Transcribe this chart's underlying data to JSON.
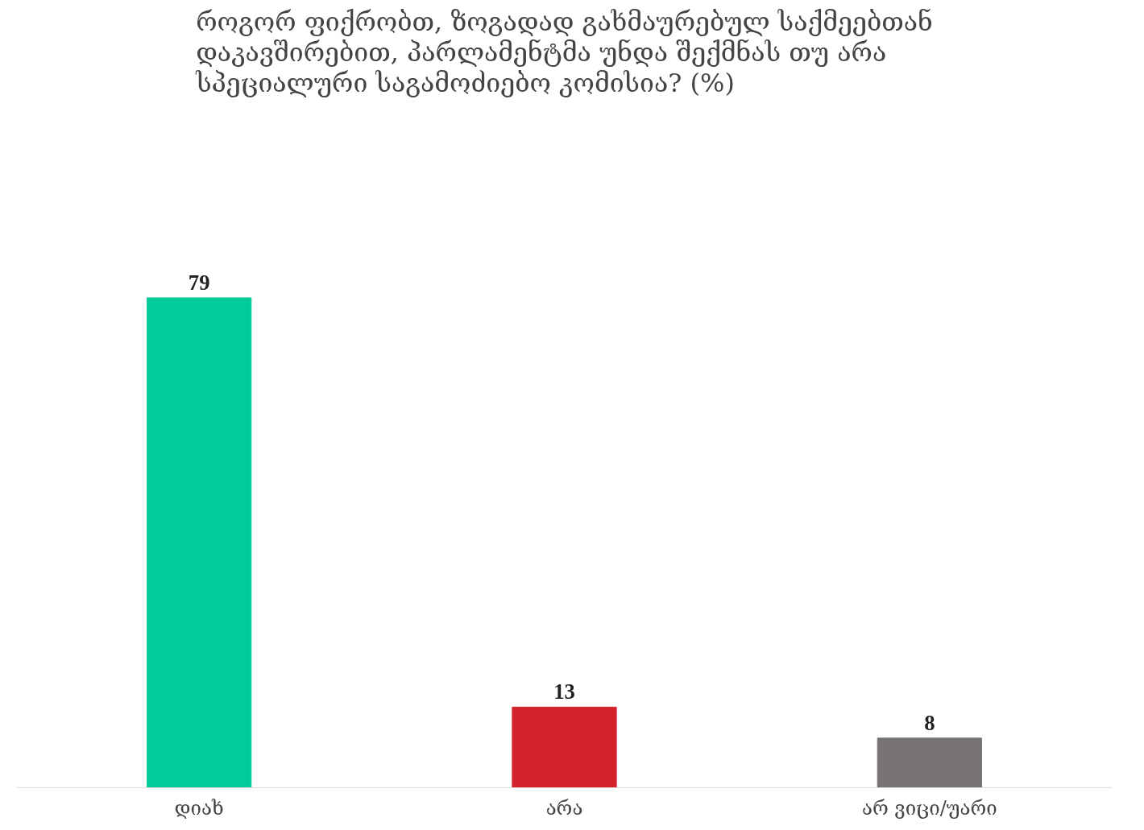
{
  "chart_data": {
    "type": "bar",
    "title": "როგორ ფიქრობთ, ზოგადად გახმაურებულ საქმეებთან დაკავშირებით, პარლამენტმა უნდა შექმნას თუ არა სპეციალური საგამოძიებო კომისია? (%)",
    "categories": [
      "დიახ",
      "არა",
      "არ ვიცი/უარი"
    ],
    "values": [
      79,
      13,
      8
    ],
    "colors": [
      "#00cc99",
      "#d3232a",
      "#777372"
    ],
    "data_labels": true
  }
}
